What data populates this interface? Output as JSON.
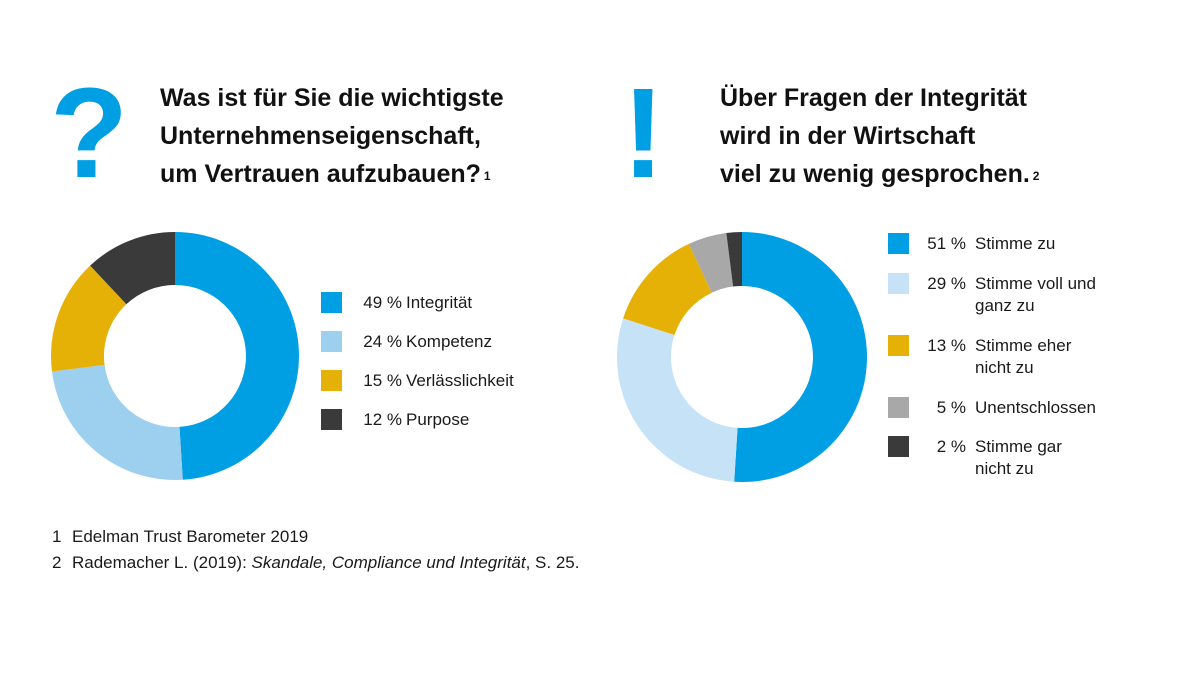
{
  "glyph_left": "?",
  "glyph_right": "!",
  "title_left": {
    "lines": [
      "Was ist für Sie die wichtigste",
      "Unternehmenseigenschaft,",
      "um Vertrauen aufzubauen?"
    ],
    "ref": "1"
  },
  "title_right": {
    "lines": [
      "Über Fragen der Integrität",
      "wird in der Wirtschaft",
      "viel zu wenig gesprochen."
    ],
    "ref": "2"
  },
  "colors": {
    "blue": "#009fe3",
    "light_blue": "#9dcfef",
    "pale_blue": "#c6e2f6",
    "yellow": "#e6b106",
    "gray": "#a8a8a8",
    "dark": "#3a3a3a"
  },
  "chart_data": [
    {
      "type": "pie",
      "donut": true,
      "legend_position": "right",
      "slices": [
        {
          "value": 49,
          "pct_label": "49 %",
          "label": "Integrität",
          "color": "#009fe3"
        },
        {
          "value": 24,
          "pct_label": "24 %",
          "label": "Kompetenz",
          "color": "#9dcfef"
        },
        {
          "value": 15,
          "pct_label": "15 %",
          "label": "Verlässlichkeit",
          "color": "#e6b106"
        },
        {
          "value": 12,
          "pct_label": "12 %",
          "label": "Purpose",
          "color": "#3a3a3a"
        }
      ]
    },
    {
      "type": "pie",
      "donut": true,
      "legend_position": "right",
      "slices": [
        {
          "value": 51,
          "pct_label": "51 %",
          "label": [
            "Stimme zu"
          ],
          "color": "#009fe3"
        },
        {
          "value": 29,
          "pct_label": "29 %",
          "label": [
            "Stimme voll und",
            "ganz zu"
          ],
          "color": "#c6e2f6"
        },
        {
          "value": 13,
          "pct_label": "13 %",
          "label": [
            "Stimme eher",
            "nicht zu"
          ],
          "color": "#e6b106"
        },
        {
          "value": 5,
          "pct_label": "5 %",
          "label": [
            "Unentschlossen"
          ],
          "color": "#a8a8a8"
        },
        {
          "value": 2,
          "pct_label": "2 %",
          "label": [
            "Stimme gar",
            "nicht zu"
          ],
          "color": "#3a3a3a"
        }
      ]
    }
  ],
  "footnotes": [
    {
      "num": "1",
      "pre": "Edelman Trust Barometer 2019",
      "italic": "",
      "post": ""
    },
    {
      "num": "2",
      "pre": "Rademacher L. (2019): ",
      "italic": "Skandale, Compliance und Integrität",
      "post": ", S. 25."
    }
  ]
}
